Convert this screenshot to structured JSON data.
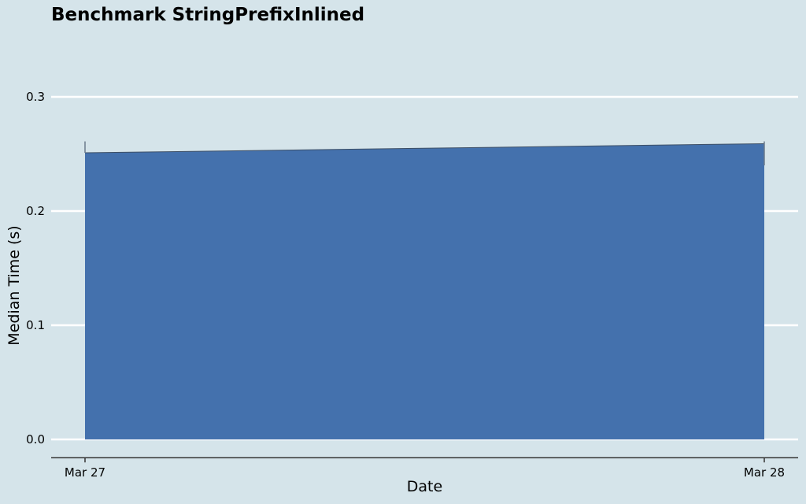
{
  "chart_data": {
    "type": "area",
    "title": "Benchmark StringPrefixInlined",
    "xlabel": "Date",
    "ylabel": "Median Time (s)",
    "x": [
      "Mar 27",
      "Mar 28"
    ],
    "values": [
      0.251,
      0.259
    ],
    "error_bars": [
      {
        "low": 0.251,
        "high": 0.261
      },
      {
        "low": 0.24,
        "high": 0.261
      }
    ],
    "ylim": [
      -0.016,
      0.33
    ],
    "yticks": [
      0.0,
      0.1,
      0.2,
      0.3
    ],
    "ytick_labels": [
      "0.0",
      "0.1",
      "0.2",
      "0.3"
    ],
    "grid": true,
    "legend": "none",
    "colors": {
      "background": "#d5e4ea",
      "area_fill": "#4471ad",
      "area_edge": "#3d4f66",
      "gridline": "#ffffff",
      "axis": "#333333",
      "error_bar": "#6b7b8c"
    }
  }
}
